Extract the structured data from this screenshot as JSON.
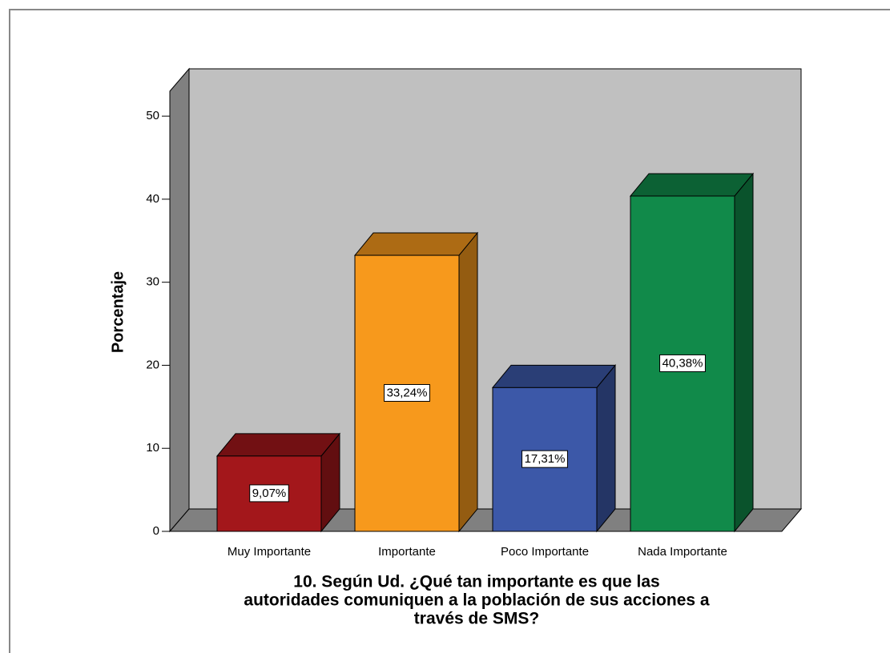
{
  "chart_data": {
    "type": "bar3d",
    "ylabel": "Porcentaje",
    "xlabel_lines": [
      "10. Según Ud. ¿Qué tan importante es que las",
      "autoridades comuniquen a la población de sus acciones a",
      "través de SMS?"
    ],
    "categories": [
      "Muy Importante",
      "Importante",
      "Poco Importante",
      "Nada Importante"
    ],
    "values": [
      9.07,
      33.24,
      17.31,
      40.38
    ],
    "value_labels": [
      "9,07%",
      "33,24%",
      "17,31%",
      "40,38%"
    ],
    "colors": [
      "#a3171b",
      "#f7991c",
      "#3c58a8",
      "#118a4a"
    ],
    "ylim": [
      0,
      53
    ],
    "yticks": [
      0,
      10,
      20,
      30,
      40,
      50
    ]
  }
}
